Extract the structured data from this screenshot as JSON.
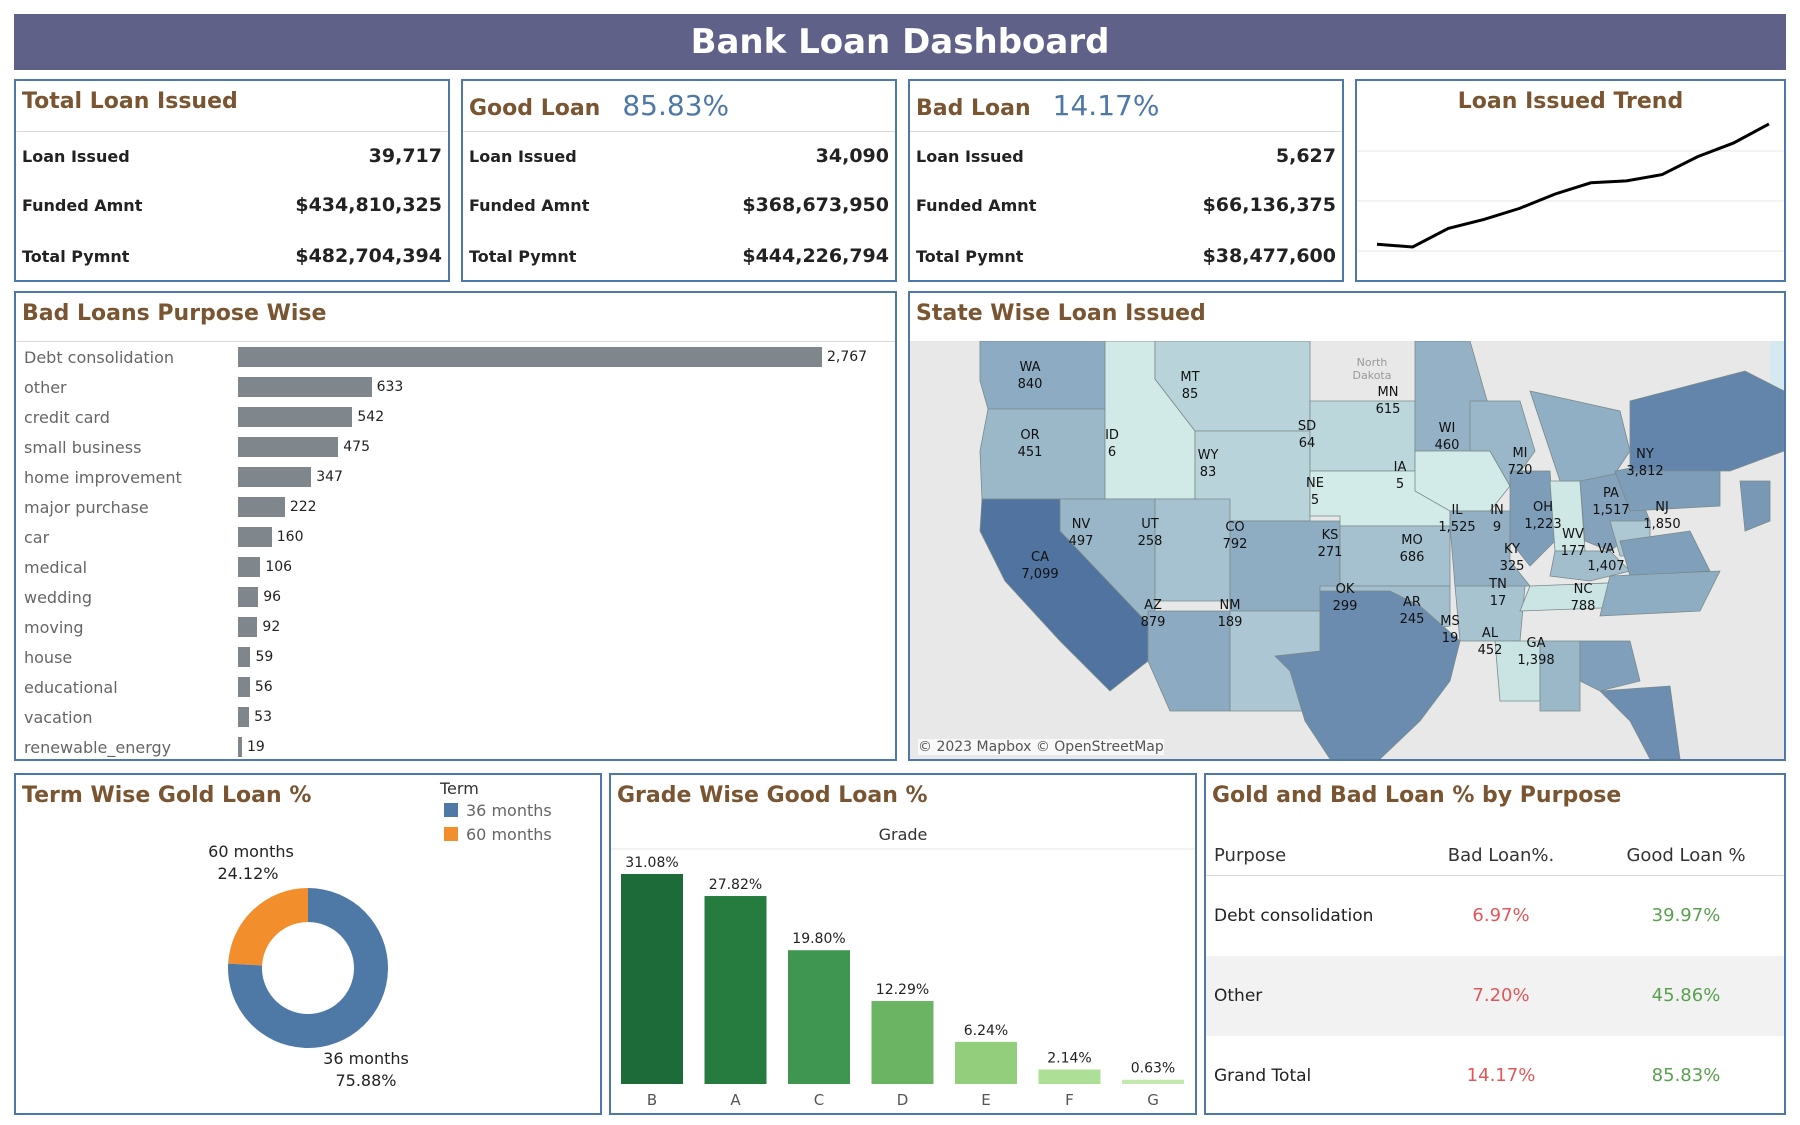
{
  "title": "Bank Loan Dashboard",
  "kpis": {
    "total": {
      "title": "Total Loan Issued",
      "pct": "",
      "rows": [
        {
          "label": "Loan Issued",
          "value": "39,717"
        },
        {
          "label": "Funded Amnt",
          "value": "$434,810,325"
        },
        {
          "label": "Total Pymnt",
          "value": "$482,704,394"
        }
      ]
    },
    "good": {
      "title": "Good Loan",
      "pct": "85.83%",
      "rows": [
        {
          "label": "Loan Issued",
          "value": "34,090"
        },
        {
          "label": "Funded Amnt",
          "value": "$368,673,950"
        },
        {
          "label": "Total Pymnt",
          "value": "$444,226,794"
        }
      ]
    },
    "bad": {
      "title": "Bad Loan",
      "pct": "14.17%",
      "rows": [
        {
          "label": "Loan Issued",
          "value": "5,627"
        },
        {
          "label": "Funded Amnt",
          "value": "$66,136,375"
        },
        {
          "label": "Total Pymnt",
          "value": "$38,477,600"
        }
      ]
    }
  },
  "trend": {
    "title": "Loan Issued Trend"
  },
  "purpose": {
    "title": "Bad Loans Purpose Wise"
  },
  "map": {
    "title": "State Wise Loan Issued",
    "credit": "© 2023 Mapbox © OpenStreetMap",
    "region_label_1": "North",
    "region_label_2": "Dakota",
    "states": [
      {
        "code": "WA",
        "value": "840"
      },
      {
        "code": "OR",
        "value": "451"
      },
      {
        "code": "ID",
        "value": "6"
      },
      {
        "code": "MT",
        "value": "85"
      },
      {
        "code": "WY",
        "value": "83"
      },
      {
        "code": "CA",
        "value": "7,099"
      },
      {
        "code": "NV",
        "value": "497"
      },
      {
        "code": "UT",
        "value": "258"
      },
      {
        "code": "CO",
        "value": "792"
      },
      {
        "code": "AZ",
        "value": "879"
      },
      {
        "code": "NM",
        "value": "189"
      },
      {
        "code": "SD",
        "value": "64"
      },
      {
        "code": "NE",
        "value": "5"
      },
      {
        "code": "KS",
        "value": "271"
      },
      {
        "code": "OK",
        "value": "299"
      },
      {
        "code": "MN",
        "value": "615"
      },
      {
        "code": "IA",
        "value": "5"
      },
      {
        "code": "MO",
        "value": "686"
      },
      {
        "code": "AR",
        "value": "245"
      },
      {
        "code": "WI",
        "value": "460"
      },
      {
        "code": "IL",
        "value": "1,525"
      },
      {
        "code": "MS",
        "value": "19"
      },
      {
        "code": "AL",
        "value": "452"
      },
      {
        "code": "TN",
        "value": "17"
      },
      {
        "code": "IN",
        "value": "9"
      },
      {
        "code": "MI",
        "value": "720"
      },
      {
        "code": "OH",
        "value": "1,223"
      },
      {
        "code": "KY",
        "value": "325"
      },
      {
        "code": "GA",
        "value": "1,398"
      },
      {
        "code": "WV",
        "value": "177"
      },
      {
        "code": "VA",
        "value": "1,407"
      },
      {
        "code": "NC",
        "value": "788"
      },
      {
        "code": "PA",
        "value": "1,517"
      },
      {
        "code": "NY",
        "value": "3,812"
      },
      {
        "code": "NJ",
        "value": "1,850"
      }
    ]
  },
  "term": {
    "title": "Term Wise Gold Loan %",
    "legend_title": "Term"
  },
  "grade": {
    "title": "Grade Wise Good Loan %",
    "axis_title": "Grade"
  },
  "table": {
    "title": "Gold and Bad Loan % by Purpose",
    "headers": [
      "Purpose",
      "Bad Loan%.",
      "Good Loan %"
    ],
    "rows": [
      [
        "Debt consolidation",
        "6.97%",
        "39.97%"
      ],
      [
        "Other",
        "7.20%",
        "45.86%"
      ],
      [
        "Grand Total",
        "14.17%",
        "85.83%"
      ]
    ]
  },
  "colors": {
    "bad": "#e15759",
    "good": "#59a14f",
    "accent": "#4e78a8",
    "title": "#7a5532"
  },
  "chart_data": [
    {
      "type": "line",
      "title": "Loan Issued Trend",
      "x": [
        1,
        2,
        3,
        4,
        5,
        6,
        7,
        8,
        9,
        10,
        11,
        12
      ],
      "values": [
        2332,
        2279,
        2644,
        2819,
        3036,
        3318,
        3538,
        3575,
        3699,
        4051,
        4317,
        4692
      ]
    },
    {
      "type": "bar",
      "orientation": "horizontal",
      "title": "Bad Loans Purpose Wise",
      "categories": [
        "Debt consolidation",
        "other",
        "credit card",
        "small business",
        "home improvement",
        "major purchase",
        "car",
        "medical",
        "wedding",
        "moving",
        "house",
        "educational",
        "vacation",
        "renewable_energy"
      ],
      "values": [
        2767,
        633,
        542,
        475,
        347,
        222,
        160,
        106,
        96,
        92,
        59,
        56,
        53,
        19
      ],
      "labels": [
        "2,767",
        "633",
        "542",
        "475",
        "347",
        "222",
        "160",
        "106",
        "96",
        "92",
        "59",
        "56",
        "53",
        "19"
      ]
    },
    {
      "type": "pie",
      "title": "Term Wise Gold Loan %",
      "categories": [
        "36 months",
        "60 months"
      ],
      "values": [
        75.88,
        24.12
      ],
      "labels": [
        "75.88%",
        "24.12%"
      ],
      "colors": [
        "#4e79a7",
        "#f28e2b"
      ]
    },
    {
      "type": "bar",
      "title": "Grade Wise Good Loan %",
      "xlabel": "Grade",
      "categories": [
        "B",
        "A",
        "C",
        "D",
        "E",
        "F",
        "G"
      ],
      "values": [
        31.08,
        27.82,
        19.8,
        12.29,
        6.24,
        2.14,
        0.63
      ],
      "labels": [
        "31.08%",
        "27.82%",
        "19.80%",
        "12.29%",
        "6.24%",
        "2.14%",
        "0.63%"
      ],
      "colors": [
        "#1e6b3a",
        "#267b3f",
        "#3f9650",
        "#6bb464",
        "#92ce7c",
        "#addf96",
        "#c4e8ae"
      ]
    }
  ]
}
